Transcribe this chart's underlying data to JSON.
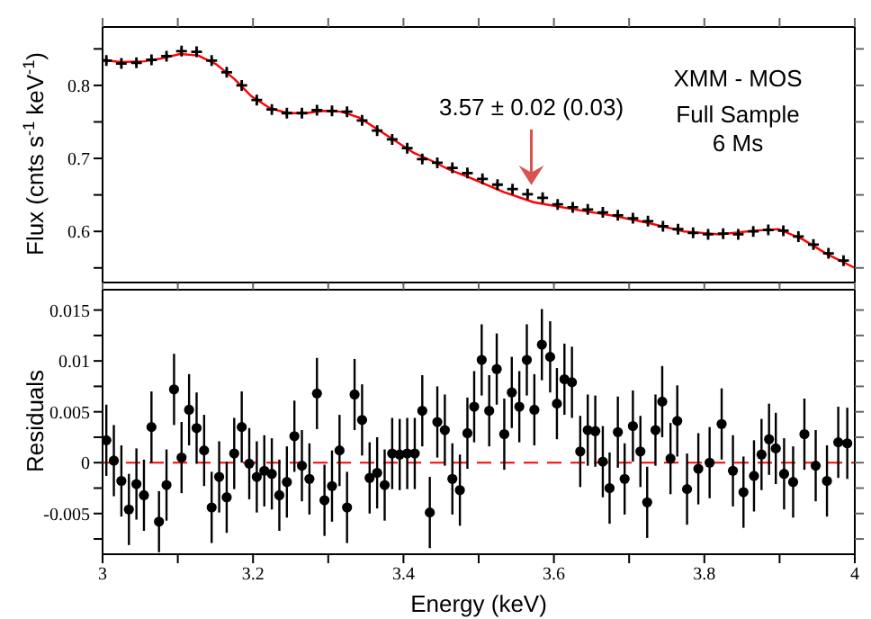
{
  "chart_data": [
    {
      "type": "scatter",
      "ylabel": "Flux (cnts s$^{-1}$ keV$^{-1}$)",
      "xlim": [
        3,
        4
      ],
      "xticks": [
        3,
        3.1,
        3.2,
        3.3,
        3.4,
        3.5,
        3.6,
        3.7,
        3.8,
        3.9,
        4
      ],
      "ylim": [
        0.53,
        0.88
      ],
      "yticks": [
        {
          "value": 0.55,
          "label": null
        },
        0.6,
        {
          "value": 0.65,
          "label": null
        },
        0.7,
        {
          "value": 0.75,
          "label": null
        },
        0.8,
        {
          "value": 0.85,
          "label": null
        }
      ],
      "tick_labels": "y",
      "grid": false,
      "legend": false,
      "annotations": [
        {
          "text": "3.57 ± 0.02 (0.03)",
          "x": 3.57,
          "y": 0.655
        },
        "XMM - MOS",
        "Full Sample",
        "6 Ms"
      ],
      "series": [
        {
          "marker": "cross",
          "color": "#000000",
          "x": [
            3.005,
            3.025,
            3.045,
            3.065,
            3.085,
            3.105,
            3.125,
            3.145,
            3.165,
            3.185,
            3.205,
            3.225,
            3.245,
            3.265,
            3.285,
            3.305,
            3.325,
            3.345,
            3.365,
            3.385,
            3.405,
            3.425,
            3.445,
            3.465,
            3.485,
            3.505,
            3.525,
            3.545,
            3.565,
            3.585,
            3.605,
            3.625,
            3.645,
            3.665,
            3.685,
            3.705,
            3.725,
            3.745,
            3.765,
            3.785,
            3.805,
            3.825,
            3.845,
            3.865,
            3.885,
            3.905,
            3.925,
            3.945,
            3.965,
            3.985
          ],
          "values": [
            0.834,
            0.83,
            0.831,
            0.835,
            0.84,
            0.847,
            0.846,
            0.834,
            0.818,
            0.8,
            0.78,
            0.767,
            0.762,
            0.762,
            0.766,
            0.765,
            0.764,
            0.752,
            0.738,
            0.726,
            0.714,
            0.699,
            0.694,
            0.687,
            0.68,
            0.672,
            0.664,
            0.658,
            0.651,
            0.646,
            0.637,
            0.633,
            0.63,
            0.626,
            0.622,
            0.618,
            0.614,
            0.607,
            0.603,
            0.598,
            0.596,
            0.597,
            0.596,
            0.6,
            0.602,
            0.601,
            0.593,
            0.582,
            0.57,
            0.56
          ],
          "errors": [
            0.004,
            0.004,
            0.004,
            0.004,
            0.004,
            0.004,
            0.004,
            0.004,
            0.004,
            0.004,
            0.004,
            0.004,
            0.004,
            0.004,
            0.004,
            0.004,
            0.004,
            0.004,
            0.004,
            0.004,
            0.004,
            0.004,
            0.004,
            0.004,
            0.004,
            0.004,
            0.004,
            0.004,
            0.004,
            0.004,
            0.004,
            0.004,
            0.004,
            0.004,
            0.004,
            0.004,
            0.004,
            0.004,
            0.004,
            0.004,
            0.004,
            0.004,
            0.004,
            0.004,
            0.004,
            0.004,
            0.004,
            0.004,
            0.004,
            0.004
          ]
        },
        {
          "type": "line",
          "marker": "none",
          "color": "#ff0000",
          "x": [
            3,
            3.024,
            3.056,
            3.079,
            3.103,
            3.127,
            3.151,
            3.175,
            3.198,
            3.222,
            3.246,
            3.27,
            3.294,
            3.317,
            3.341,
            3.365,
            3.389,
            3.413,
            3.437,
            3.46,
            3.485,
            3.533,
            3.573,
            3.628,
            3.676,
            3.724,
            3.772,
            3.82,
            3.867,
            3.899,
            3.931,
            3.963,
            4
          ],
          "values": [
            0.835,
            0.832,
            0.833,
            0.837,
            0.843,
            0.841,
            0.829,
            0.809,
            0.785,
            0.769,
            0.762,
            0.762,
            0.765,
            0.764,
            0.756,
            0.74,
            0.724,
            0.708,
            0.697,
            0.685,
            0.675,
            0.654,
            0.64,
            0.63,
            0.622,
            0.612,
            0.6,
            0.596,
            0.601,
            0.603,
            0.589,
            0.569,
            0.55
          ]
        }
      ]
    },
    {
      "type": "scatter",
      "xlabel": "Energy (keV)",
      "ylabel": "Residuals",
      "xlim": [
        3,
        4
      ],
      "xticks": [
        3,
        {
          "value": 3.1,
          "label": null
        },
        3.2,
        {
          "value": 3.3,
          "label": null
        },
        3.4,
        {
          "value": 3.5,
          "label": null
        },
        3.6,
        {
          "value": 3.7,
          "label": null
        },
        3.8,
        {
          "value": 3.9,
          "label": null
        },
        4
      ],
      "ylim": [
        -0.009,
        0.017
      ],
      "yticks": [
        {
          "value": -0.0075,
          "label": null
        },
        -0.005,
        {
          "value": -0.0025,
          "label": null
        },
        0,
        {
          "value": 0.0025,
          "label": null
        },
        0.005,
        {
          "value": 0.0075,
          "label": null
        },
        0.01,
        {
          "value": 0.0125,
          "label": null
        },
        0.015
      ],
      "grid": false,
      "legend": false,
      "ref_lines": [
        {
          "axis": "y",
          "value": 0,
          "color": "#ff0000",
          "line_style": "dashed"
        }
      ],
      "series": [
        {
          "marker": "circle",
          "color": "#000000",
          "x": [
            3.005,
            3.015,
            3.025,
            3.035,
            3.045,
            3.055,
            3.065,
            3.075,
            3.085,
            3.095,
            3.105,
            3.115,
            3.125,
            3.135,
            3.145,
            3.155,
            3.165,
            3.175,
            3.185,
            3.195,
            3.205,
            3.215,
            3.225,
            3.235,
            3.245,
            3.255,
            3.265,
            3.275,
            3.285,
            3.295,
            3.305,
            3.315,
            3.325,
            3.335,
            3.345,
            3.355,
            3.365,
            3.375,
            3.385,
            3.395,
            3.405,
            3.415,
            3.425,
            3.435,
            3.445,
            3.455,
            3.465,
            3.475,
            3.485,
            3.494,
            3.504,
            3.514,
            3.524,
            3.534,
            3.544,
            3.554,
            3.564,
            3.574,
            3.584,
            3.595,
            3.604,
            3.614,
            3.624,
            3.635,
            3.645,
            3.655,
            3.665,
            3.674,
            3.685,
            3.694,
            3.705,
            3.715,
            3.724,
            3.735,
            3.744,
            3.755,
            3.764,
            3.777,
            3.792,
            3.807,
            3.823,
            3.838,
            3.852,
            3.866,
            3.876,
            3.886,
            3.895,
            3.906,
            3.918,
            3.933,
            3.948,
            3.963,
            3.978,
            3.99
          ],
          "values": [
            0.0022,
            0.0002,
            -0.0018,
            -0.0046,
            -0.0021,
            -0.0032,
            0.0035,
            -0.0058,
            -0.0022,
            0.0072,
            0.0005,
            0.0052,
            0.0034,
            0.0012,
            -0.0044,
            -0.0014,
            -0.0034,
            0.0009,
            0.0035,
            -0.0001,
            -0.0014,
            -0.0008,
            -0.0011,
            -0.0032,
            -0.0019,
            0.0026,
            -0.0003,
            -0.0016,
            0.0068,
            -0.0037,
            -0.0023,
            0.0012,
            -0.0044,
            0.0067,
            0.0042,
            -0.0015,
            -0.001,
            -0.0022,
            0.0009,
            0.0008,
            0.0009,
            0.0009,
            0.0051,
            -0.0049,
            0.004,
            0.0032,
            -0.0016,
            -0.0027,
            0.0029,
            0.0055,
            0.0101,
            0.0051,
            0.0092,
            0.0028,
            0.0069,
            0.0055,
            0.0101,
            0.0052,
            0.0116,
            0.0104,
            0.0058,
            0.0082,
            0.0079,
            0.0011,
            0.0032,
            0.0031,
            0.0001,
            -0.0025,
            0.003,
            -0.0016,
            0.0036,
            0.0011,
            -0.0039,
            0.0032,
            0.006,
            0.0004,
            0.0041,
            -0.0026,
            -0.0006,
            0,
            0.0038,
            -0.0008,
            -0.0029,
            -0.0013,
            0.0008,
            0.0023,
            0.0014,
            -0.0011,
            -0.0019,
            0.0028,
            -0.0003,
            -0.0018,
            0.002,
            0.0019
          ],
          "errors": [
            0.0035,
            0.0035,
            0.0035,
            0.0035,
            0.0035,
            0.0035,
            0.0035,
            0.003,
            0.0035,
            0.0035,
            0.0035,
            0.0035,
            0.0035,
            0.0035,
            0.0035,
            0.0035,
            0.0035,
            0.0035,
            0.0035,
            0.0035,
            0.0035,
            0.0035,
            0.0035,
            0.0035,
            0.0035,
            0.0035,
            0.0035,
            0.0035,
            0.0035,
            0.0035,
            0.0035,
            0.0035,
            0.0035,
            0.0035,
            0.0035,
            0.0035,
            0.0035,
            0.0035,
            0.0035,
            0.0035,
            0.0035,
            0.0035,
            0.0035,
            0.0035,
            0.0035,
            0.0035,
            0.0035,
            0.0035,
            0.0035,
            0.0035,
            0.0035,
            0.0035,
            0.0035,
            0.0035,
            0.0035,
            0.0035,
            0.0035,
            0.0035,
            0.0035,
            0.0035,
            0.0035,
            0.0035,
            0.0035,
            0.0035,
            0.0035,
            0.0035,
            0.0035,
            0.0035,
            0.0035,
            0.0035,
            0.0035,
            0.0035,
            0.0035,
            0.0035,
            0.0035,
            0.0035,
            0.0035,
            0.0035,
            0.0035,
            0.0035,
            0.0035,
            0.0035,
            0.0035,
            0.0035,
            0.0035,
            0.0035,
            0.0035,
            0.0035,
            0.0035,
            0.0035,
            0.0035,
            0.0035,
            0.0035,
            0.0035
          ]
        }
      ]
    }
  ]
}
